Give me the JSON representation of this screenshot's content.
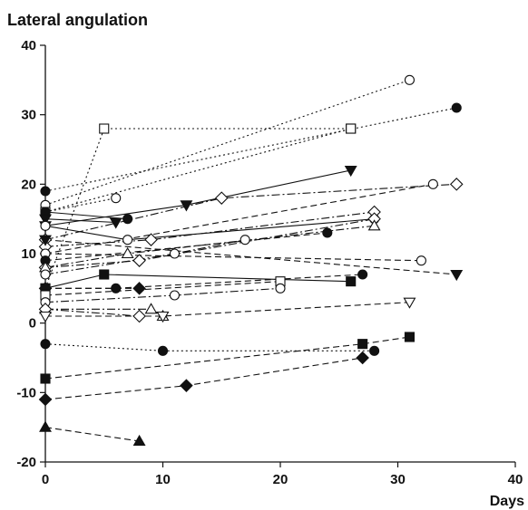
{
  "chart_data": {
    "type": "scatter",
    "title": "",
    "xlabel": "Days",
    "ylabel": "Lateral angulation",
    "xlim": [
      0,
      40
    ],
    "ylim": [
      -20,
      40
    ],
    "x_ticks": [
      "0",
      "10",
      "20",
      "30",
      "40"
    ],
    "y_ticks": [
      "-20",
      "-10",
      "0",
      "10",
      "20",
      "30",
      "40"
    ],
    "grid": false,
    "legend": "none",
    "series": [
      {
        "marker": "open-circle",
        "line": "dotted",
        "points": [
          [
            0,
            17
          ],
          [
            31,
            35
          ]
        ]
      },
      {
        "marker": "filled-circle",
        "line": "dotted",
        "points": [
          [
            0,
            19
          ],
          [
            35,
            31
          ]
        ]
      },
      {
        "marker": "open-square",
        "line": "dotted",
        "points": [
          [
            0,
            5
          ],
          [
            5,
            28
          ],
          [
            26,
            28
          ]
        ]
      },
      {
        "marker": "open-square",
        "line": "dotted",
        "points": [
          [
            0,
            16
          ],
          [
            26,
            28
          ]
        ]
      },
      {
        "marker": "open-circle",
        "line": "dotted",
        "points": [
          [
            0,
            16
          ],
          [
            6,
            18
          ]
        ]
      },
      {
        "marker": "filled-triangle-down",
        "line": "solid",
        "points": [
          [
            0,
            14
          ],
          [
            12,
            17
          ],
          [
            26,
            22
          ]
        ]
      },
      {
        "marker": "filled-circle",
        "line": "solid",
        "points": [
          [
            0,
            16
          ],
          [
            7,
            15
          ]
        ]
      },
      {
        "marker": "filled-triangle-down",
        "line": "solid",
        "points": [
          [
            0,
            15
          ],
          [
            6,
            14.5
          ]
        ]
      },
      {
        "marker": "open-circle",
        "line": "solid",
        "points": [
          [
            0,
            14
          ],
          [
            7,
            12
          ],
          [
            28,
            15
          ]
        ]
      },
      {
        "marker": "open-diamond",
        "line": "dash-dot",
        "points": [
          [
            0,
            12
          ],
          [
            15,
            18
          ],
          [
            35,
            20
          ]
        ]
      },
      {
        "marker": "open-diamond",
        "line": "dash-dot",
        "points": [
          [
            0,
            11
          ],
          [
            9,
            12
          ],
          [
            28,
            16
          ]
        ]
      },
      {
        "marker": "filled-triangle-down",
        "line": "dashed",
        "points": [
          [
            0,
            12
          ],
          [
            35,
            7
          ]
        ]
      },
      {
        "marker": "open-circle",
        "line": "dashed",
        "points": [
          [
            0,
            10
          ],
          [
            33,
            20
          ]
        ]
      },
      {
        "marker": "open-circle",
        "line": "dashed",
        "points": [
          [
            0,
            10
          ],
          [
            32,
            9
          ]
        ]
      },
      {
        "marker": "filled-circle",
        "line": "dashed",
        "points": [
          [
            0,
            9
          ],
          [
            24,
            13
          ]
        ]
      },
      {
        "marker": "open-diamond",
        "line": "dash-dot",
        "points": [
          [
            0,
            8
          ],
          [
            8,
            9
          ],
          [
            28,
            15
          ]
        ]
      },
      {
        "marker": "open-triangle",
        "line": "dash-dot",
        "points": [
          [
            0,
            8
          ],
          [
            7,
            10
          ],
          [
            28,
            14
          ]
        ]
      },
      {
        "marker": "open-circle",
        "line": "dash-dot",
        "points": [
          [
            0,
            7
          ],
          [
            11,
            10
          ],
          [
            17,
            12
          ]
        ]
      },
      {
        "marker": "filled-square",
        "line": "solid",
        "points": [
          [
            0,
            5
          ],
          [
            5,
            7
          ],
          [
            26,
            6
          ]
        ]
      },
      {
        "marker": "filled-circle",
        "line": "dashed",
        "points": [
          [
            0,
            5
          ],
          [
            6,
            5
          ],
          [
            27,
            7
          ]
        ]
      },
      {
        "marker": "filled-diamond",
        "line": "dashed",
        "points": [
          [
            0,
            5
          ],
          [
            8,
            5
          ]
        ]
      },
      {
        "marker": "open-square",
        "line": "dashed",
        "points": [
          [
            0,
            4
          ],
          [
            20,
            6
          ]
        ]
      },
      {
        "marker": "open-circle",
        "line": "dash-dot",
        "points": [
          [
            0,
            3
          ],
          [
            11,
            4
          ],
          [
            20,
            5
          ]
        ]
      },
      {
        "marker": "open-triangle",
        "line": "dash-dot",
        "points": [
          [
            0,
            2
          ],
          [
            9,
            2
          ],
          [
            10,
            1
          ]
        ]
      },
      {
        "marker": "open-diamond",
        "line": "dash-dot",
        "points": [
          [
            0,
            2
          ],
          [
            8,
            1
          ]
        ]
      },
      {
        "marker": "open-triangle-down",
        "line": "dashed",
        "points": [
          [
            0,
            1
          ],
          [
            10,
            1
          ],
          [
            31,
            3
          ]
        ]
      },
      {
        "marker": "filled-circle",
        "line": "dotted",
        "points": [
          [
            0,
            -3
          ],
          [
            10,
            -4
          ],
          [
            28,
            -4
          ]
        ]
      },
      {
        "marker": "filled-square",
        "line": "dashed",
        "points": [
          [
            0,
            -8
          ],
          [
            27,
            -3
          ],
          [
            31,
            -2
          ]
        ]
      },
      {
        "marker": "filled-diamond",
        "line": "dashed",
        "points": [
          [
            0,
            -11
          ],
          [
            12,
            -9
          ],
          [
            27,
            -5
          ]
        ]
      },
      {
        "marker": "filled-triangle",
        "line": "dashed",
        "points": [
          [
            0,
            -15
          ],
          [
            8,
            -17
          ]
        ]
      }
    ]
  }
}
